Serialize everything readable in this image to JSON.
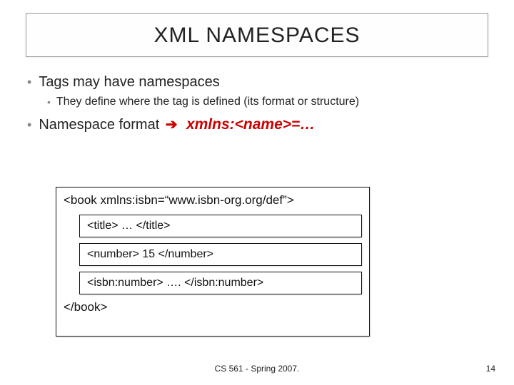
{
  "title": "XML NAMESPACES",
  "bullets": {
    "b1a": "Tags may have namespaces",
    "b2a": "They define where the tag is defined (its format or structure)",
    "b1b_label": "Namespace format",
    "b1b_arrow": "➔",
    "b1b_syntax": "xmlns:<name>=…"
  },
  "code": {
    "open": "<book xmlns:isbn=“www.isbn-org.org/def”>",
    "inner1": "<title> … </title>",
    "inner2": "<number> 15 </number>",
    "inner3": "<isbn:number> …. </isbn:number>",
    "close": "</book>"
  },
  "footer": "CS 561 - Spring 2007.",
  "pageNumber": "14",
  "colors": {
    "accent_red": "#cc0000",
    "text": "#222222",
    "bullet_gray": "#888888",
    "border": "#999999"
  }
}
